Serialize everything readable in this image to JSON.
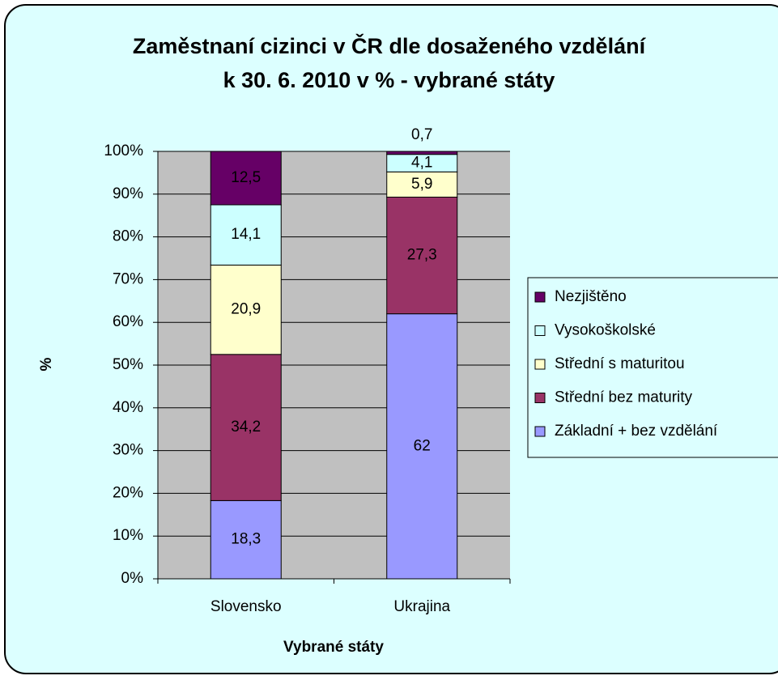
{
  "chart_data": {
    "type": "stacked-bar",
    "title": "Zaměstnaní cizinci v ČR dle dosaženého vzdělání\nk 30. 6. 2010 v % - vybrané státy",
    "xlabel": "Vybrané státy",
    "ylabel": "%",
    "categories": [
      "Slovensko",
      "Ukrajina"
    ],
    "series": [
      {
        "name": "Základní + bez vzdělání",
        "color": "#9999ff",
        "values": [
          18.3,
          62
        ],
        "value_labels": [
          "18,3",
          "62"
        ]
      },
      {
        "name": "Střední bez maturity",
        "color": "#993366",
        "values": [
          34.2,
          27.3
        ],
        "value_labels": [
          "34,2",
          "27,3"
        ]
      },
      {
        "name": "Střední s maturitou",
        "color": "#ffffcc",
        "values": [
          20.9,
          5.9
        ],
        "value_labels": [
          "20,9",
          "5,9"
        ]
      },
      {
        "name": "Vysokoškolské",
        "color": "#ccffff",
        "values": [
          14.1,
          4.1
        ],
        "value_labels": [
          "14,1",
          "4,1"
        ]
      },
      {
        "name": "Nezjištěno",
        "color": "#660066",
        "values": [
          12.5,
          0.7
        ],
        "value_labels": [
          "12,5",
          "0,7"
        ]
      }
    ],
    "ylim": [
      0,
      100
    ],
    "yticks": [
      {
        "value": 0,
        "label": "0%"
      },
      {
        "value": 10,
        "label": "10%"
      },
      {
        "value": 20,
        "label": "20%"
      },
      {
        "value": 30,
        "label": "30%"
      },
      {
        "value": 40,
        "label": "40%"
      },
      {
        "value": 50,
        "label": "50%"
      },
      {
        "value": 60,
        "label": "60%"
      },
      {
        "value": 70,
        "label": "70%"
      },
      {
        "value": 80,
        "label": "80%"
      },
      {
        "value": 90,
        "label": "90%"
      },
      {
        "value": 100,
        "label": "100%"
      }
    ],
    "grid": true,
    "legend": "right"
  }
}
